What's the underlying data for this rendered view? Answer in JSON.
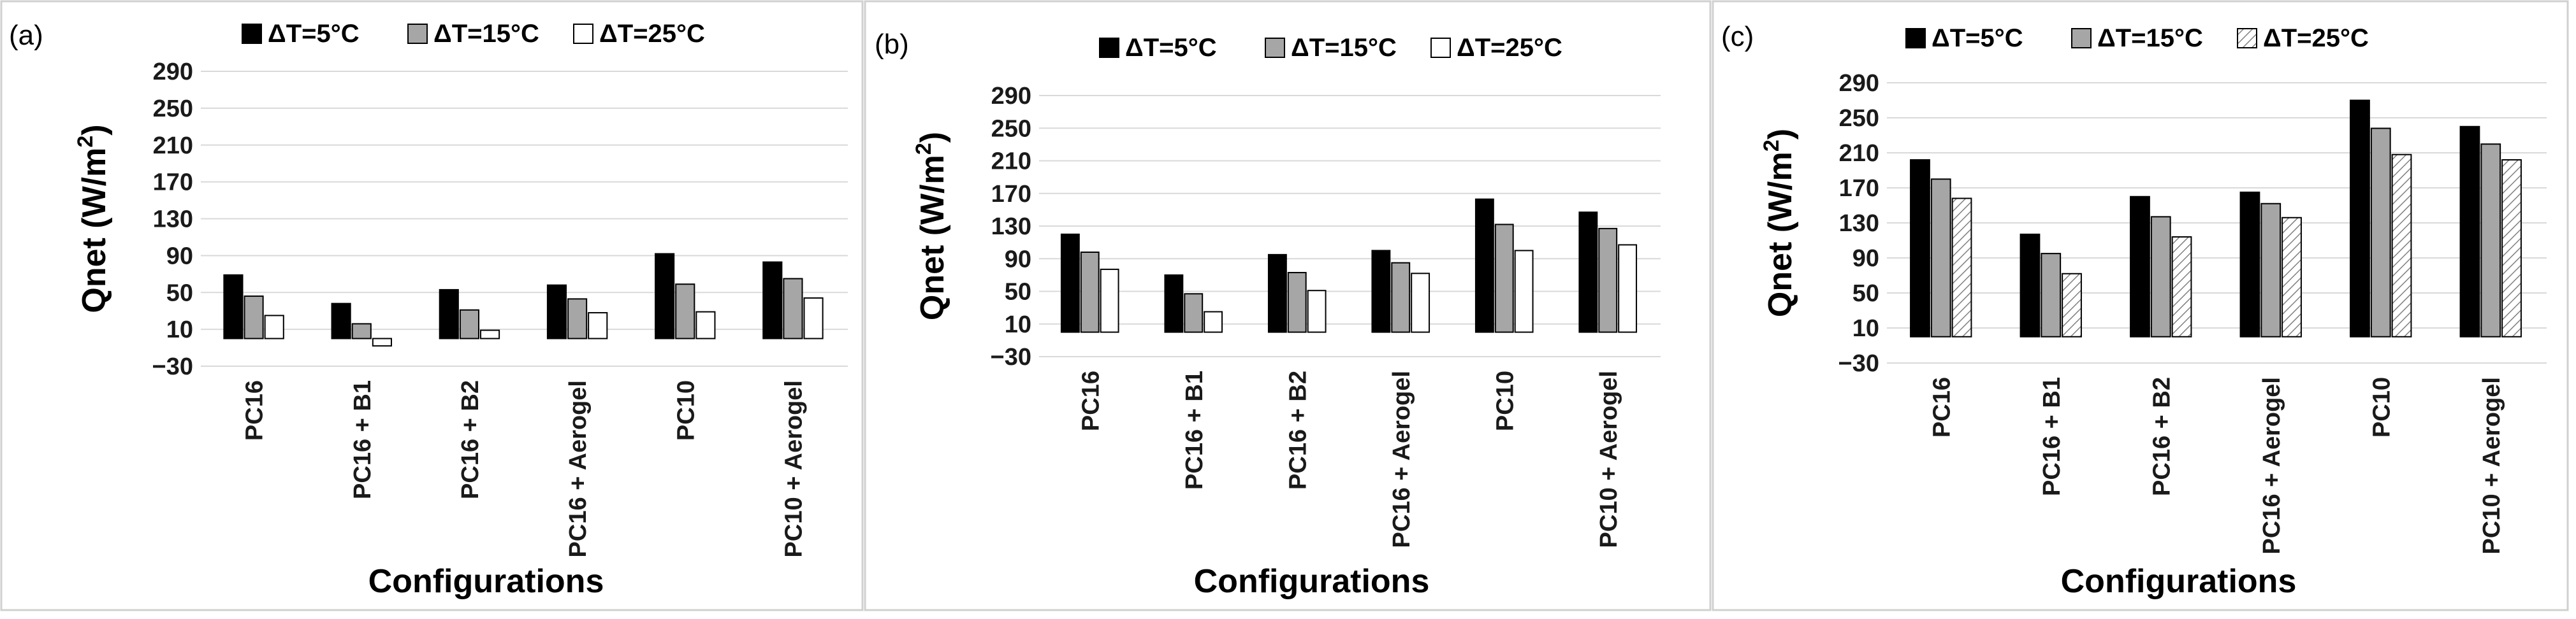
{
  "figure": {
    "colors": {
      "s1": "#000000",
      "s2": "#a6a6a6",
      "s3": "#ffffff",
      "gridline": "#d9d9d9"
    }
  },
  "chart_data": [
    {
      "type": "bar",
      "panel_label": "(a)",
      "xlabel": "Configurations",
      "ylabel": "Qnet (W/m²)",
      "ylim": [
        -30,
        290
      ],
      "yticks": [
        -30,
        10,
        50,
        90,
        130,
        170,
        210,
        250,
        290
      ],
      "categories": [
        "PC16",
        "PC16 + B1",
        "PC16 + B2",
        "PC16 + Aerogel",
        "PC10",
        "PC10 + Aerogel"
      ],
      "legend_position": "top",
      "grid": true,
      "series": [
        {
          "name": "ΔT=5°C",
          "color": "#000000",
          "pattern": "solid",
          "values": [
            69,
            38,
            53,
            58,
            92,
            83
          ]
        },
        {
          "name": "ΔT=15°C",
          "color": "#a6a6a6",
          "pattern": "solid",
          "values": [
            46,
            16,
            31,
            43,
            59,
            65
          ]
        },
        {
          "name": "ΔT=25°C",
          "color": "#ffffff",
          "pattern": "solid",
          "values": [
            25,
            -8,
            9,
            28,
            29,
            44
          ]
        }
      ]
    },
    {
      "type": "bar",
      "panel_label": "(b)",
      "xlabel": "Configurations",
      "ylabel": "Qnet (W/m²)",
      "ylim": [
        -30,
        290
      ],
      "yticks": [
        -30,
        10,
        50,
        90,
        130,
        170,
        210,
        250,
        290
      ],
      "categories": [
        "PC16",
        "PC16 + B1",
        "PC16 + B2",
        "PC16 + Aerogel",
        "PC10",
        "PC10 + Aerogel"
      ],
      "legend_position": "top",
      "grid": true,
      "series": [
        {
          "name": "ΔT=5°C",
          "color": "#000000",
          "pattern": "solid",
          "values": [
            120,
            70,
            95,
            100,
            163,
            147
          ]
        },
        {
          "name": "ΔT=15°C",
          "color": "#a6a6a6",
          "pattern": "solid",
          "values": [
            98,
            47,
            73,
            85,
            132,
            127
          ]
        },
        {
          "name": "ΔT=25°C",
          "color": "#ffffff",
          "pattern": "solid",
          "values": [
            77,
            25,
            51,
            72,
            100,
            107
          ]
        }
      ]
    },
    {
      "type": "bar",
      "panel_label": "(c)",
      "xlabel": "Configurations",
      "ylabel": "Qnet (W/m²)",
      "ylim": [
        -30,
        290
      ],
      "yticks": [
        -30,
        10,
        50,
        90,
        130,
        170,
        210,
        250,
        290
      ],
      "categories": [
        "PC16",
        "PC16 + B1",
        "PC16 + B2",
        "PC16 + Aerogel",
        "PC10",
        "PC10 + Aerogel"
      ],
      "legend_position": "top",
      "grid": true,
      "series": [
        {
          "name": "ΔT=5°C",
          "color": "#000000",
          "pattern": "solid",
          "values": [
            202,
            117,
            160,
            165,
            270,
            240
          ]
        },
        {
          "name": "ΔT=15°C",
          "color": "#a6a6a6",
          "pattern": "solid",
          "values": [
            180,
            95,
            137,
            152,
            238,
            220
          ]
        },
        {
          "name": "ΔT=25°C",
          "color": "#ffffff",
          "pattern": "hatched",
          "values": [
            158,
            72,
            114,
            136,
            208,
            202
          ]
        }
      ]
    }
  ]
}
